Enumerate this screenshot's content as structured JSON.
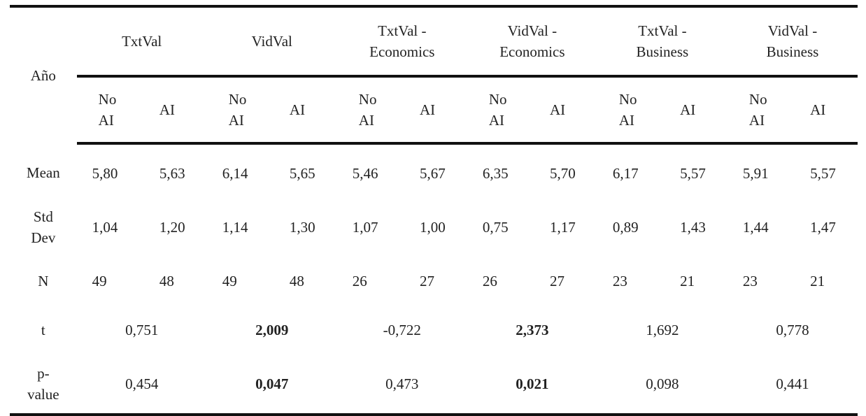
{
  "table": {
    "corner_label": "Año",
    "groups": [
      {
        "label_line1": "TxtVal",
        "label_line2": ""
      },
      {
        "label_line1": "VidVal",
        "label_line2": ""
      },
      {
        "label_line1": "TxtVal -",
        "label_line2": "Economics"
      },
      {
        "label_line1": "VidVal -",
        "label_line2": "Economics"
      },
      {
        "label_line1": "TxtVal -",
        "label_line2": "Business"
      },
      {
        "label_line1": "VidVal -",
        "label_line2": "Business"
      }
    ],
    "subheaders": {
      "no_ai_line1": "No",
      "no_ai_line2": "AI",
      "ai": "AI"
    },
    "rows": {
      "mean": {
        "label": "Mean",
        "values": [
          "5,80",
          "5,63",
          "6,14",
          "5,65",
          "5,46",
          "5,67",
          "6,35",
          "5,70",
          "6,17",
          "5,57",
          "5,91",
          "5,57"
        ]
      },
      "std": {
        "label_line1": "Std",
        "label_line2": "Dev",
        "values": [
          "1,04",
          "1,20",
          "1,14",
          "1,30",
          "1,07",
          "1,00",
          "0,75",
          "1,17",
          "0,89",
          "1,43",
          "1,44",
          "1,47"
        ]
      },
      "n": {
        "label": "N",
        "values": [
          "49",
          "48",
          "49",
          "48",
          "26",
          "27",
          "26",
          "27",
          "23",
          "21",
          "23",
          "21"
        ]
      },
      "t": {
        "label": "t",
        "values": [
          "0,751",
          "2,009",
          "-0,722",
          "2,373",
          "1,692",
          "0,778"
        ],
        "bold": [
          false,
          true,
          false,
          true,
          false,
          false
        ]
      },
      "p": {
        "label_line1": "p-",
        "label_line2": "value",
        "values": [
          "0,454",
          "0,047",
          "0,473",
          "0,021",
          "0,098",
          "0,441"
        ],
        "bold": [
          false,
          true,
          false,
          true,
          false,
          false
        ]
      }
    }
  }
}
